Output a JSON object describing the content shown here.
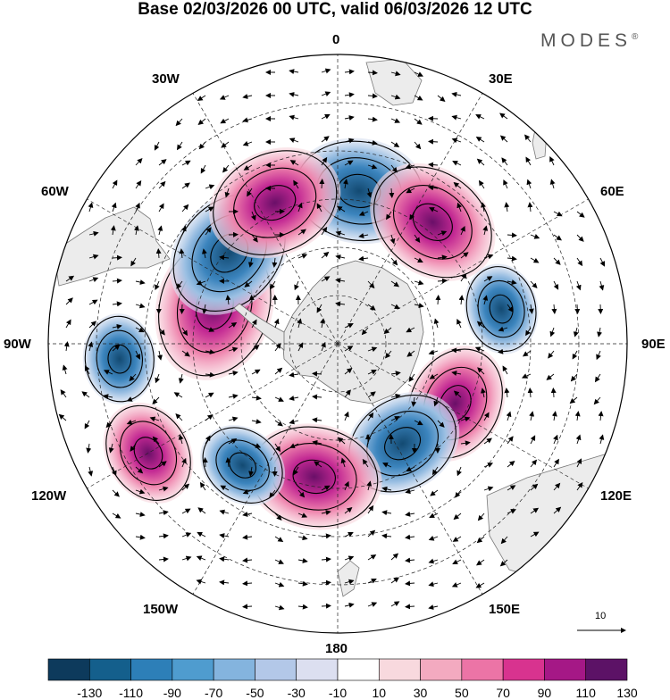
{
  "title": "Base 02/03/2026 00 UTC, valid 06/03/2026 12 UTC",
  "logo": "MODES",
  "logo_mark": "®",
  "longitude_labels": {
    "lon_0": "0",
    "lon_30e": "30E",
    "lon_60e": "60E",
    "lon_90e": "90E",
    "lon_120e": "120E",
    "lon_150e": "150E",
    "lon_180": "180",
    "lon_150w": "150W",
    "lon_120w": "120W",
    "lon_90w": "90W",
    "lon_60w": "60W",
    "lon_30w": "30W"
  },
  "reference_vector": {
    "value": "10"
  },
  "colorbar": {
    "labels": [
      "-130",
      "-110",
      "-90",
      "-70",
      "-50",
      "-30",
      "-10",
      "10",
      "30",
      "50",
      "70",
      "90",
      "110",
      "130"
    ],
    "colors": [
      "#0d3a5c",
      "#145f8c",
      "#2d7fb8",
      "#4f9ccf",
      "#84b4de",
      "#b3c8e8",
      "#dcdff0",
      "#ffffff",
      "#f8d9de",
      "#f3aac0",
      "#ec74a6",
      "#d8338f",
      "#a51886",
      "#5c1266"
    ]
  },
  "anomaly_centers": [
    {
      "name": "south-atlantic-negative",
      "lon_deg": 8,
      "colat_deg": 48,
      "value": -110
    },
    {
      "name": "south-africa-positive",
      "lon_deg": 38,
      "colat_deg": 48,
      "value": 110
    },
    {
      "name": "southern-indian-negative",
      "lon_deg": 78,
      "colat_deg": 52,
      "value": -50
    },
    {
      "name": "south-indian-east-positive",
      "lon_deg": 117,
      "colat_deg": 41,
      "value": 90
    },
    {
      "name": "southern-australia-negative",
      "lon_deg": 147,
      "colat_deg": 37,
      "value": -90
    },
    {
      "name": "south-pacific-west-positive",
      "lon_deg": 190,
      "colat_deg": 42,
      "value": 110
    },
    {
      "name": "south-pacific-central-negative",
      "lon_deg": 218,
      "colat_deg": 48,
      "value": -50
    },
    {
      "name": "south-pacific-east-positive",
      "lon_deg": 240,
      "colat_deg": 68,
      "value": 70
    },
    {
      "name": "southeast-pacific-negative",
      "lon_deg": 266,
      "colat_deg": 68,
      "value": -50
    },
    {
      "name": "bellingshausen-positive",
      "lon_deg": 287,
      "colat_deg": 40,
      "value": 130
    },
    {
      "name": "drake-passage-negative",
      "lon_deg": 310,
      "colat_deg": 44,
      "value": -110
    },
    {
      "name": "south-atlantic-west-positive",
      "lon_deg": 336,
      "colat_deg": 48,
      "value": 110
    }
  ]
}
